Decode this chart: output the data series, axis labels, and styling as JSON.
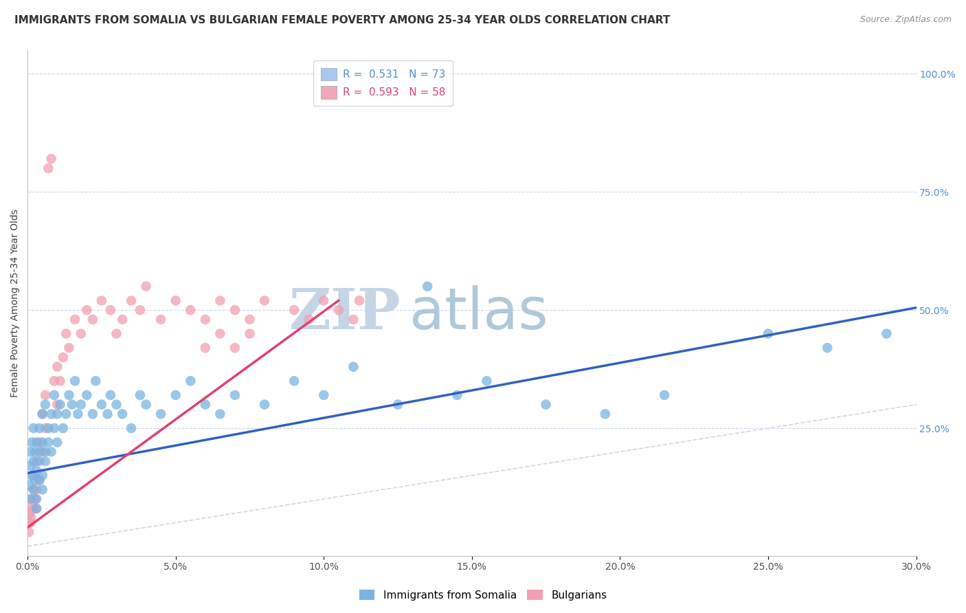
{
  "title": "IMMIGRANTS FROM SOMALIA VS BULGARIAN FEMALE POVERTY AMONG 25-34 YEAR OLDS CORRELATION CHART",
  "source": "Source: ZipAtlas.com",
  "ylabel": "Female Poverty Among 25-34 Year Olds",
  "xlim": [
    0.0,
    0.3
  ],
  "ylim": [
    -0.02,
    1.05
  ],
  "xtick_labels": [
    "0.0%",
    "5.0%",
    "10.0%",
    "15.0%",
    "20.0%",
    "25.0%",
    "30.0%"
  ],
  "xtick_vals": [
    0.0,
    0.05,
    0.1,
    0.15,
    0.2,
    0.25,
    0.3
  ],
  "ytick_labels_right": [
    "100.0%",
    "75.0%",
    "50.0%",
    "25.0%"
  ],
  "ytick_vals_right": [
    1.0,
    0.75,
    0.5,
    0.25
  ],
  "legend_entries": [
    {
      "label": "R =  0.531   N = 73",
      "color": "#a8c8f0"
    },
    {
      "label": "R =  0.593   N = 58",
      "color": "#f0a8b8"
    }
  ],
  "color_somalia": "#7ab3e0",
  "color_bulgarian": "#f0a0b0",
  "trendline_somalia_color": "#3060c0",
  "trendline_bulgarian_color": "#e04070",
  "watermark_zip": "ZIP",
  "watermark_atlas": "atlas",
  "watermark_color_zip": "#c5d5e5",
  "watermark_color_atlas": "#b0c8d8",
  "background_color": "#ffffff",
  "grid_color": "#d0d8e8",
  "somalia_x": [
    0.0005,
    0.001,
    0.001,
    0.001,
    0.0015,
    0.0015,
    0.002,
    0.002,
    0.002,
    0.0025,
    0.0025,
    0.003,
    0.003,
    0.003,
    0.003,
    0.004,
    0.004,
    0.004,
    0.004,
    0.005,
    0.005,
    0.005,
    0.005,
    0.006,
    0.006,
    0.006,
    0.007,
    0.007,
    0.008,
    0.008,
    0.009,
    0.009,
    0.01,
    0.01,
    0.011,
    0.012,
    0.013,
    0.014,
    0.015,
    0.016,
    0.017,
    0.018,
    0.02,
    0.022,
    0.023,
    0.025,
    0.027,
    0.028,
    0.03,
    0.032,
    0.035,
    0.038,
    0.04,
    0.045,
    0.05,
    0.055,
    0.06,
    0.065,
    0.07,
    0.08,
    0.09,
    0.1,
    0.11,
    0.125,
    0.135,
    0.145,
    0.155,
    0.175,
    0.195,
    0.215,
    0.25,
    0.27,
    0.29
  ],
  "somalia_y": [
    0.13,
    0.17,
    0.1,
    0.2,
    0.15,
    0.22,
    0.12,
    0.18,
    0.25,
    0.14,
    0.2,
    0.1,
    0.16,
    0.22,
    0.08,
    0.18,
    0.14,
    0.25,
    0.2,
    0.15,
    0.22,
    0.28,
    0.12,
    0.2,
    0.3,
    0.18,
    0.25,
    0.22,
    0.28,
    0.2,
    0.25,
    0.32,
    0.28,
    0.22,
    0.3,
    0.25,
    0.28,
    0.32,
    0.3,
    0.35,
    0.28,
    0.3,
    0.32,
    0.28,
    0.35,
    0.3,
    0.28,
    0.32,
    0.3,
    0.28,
    0.25,
    0.32,
    0.3,
    0.28,
    0.32,
    0.35,
    0.3,
    0.28,
    0.32,
    0.3,
    0.35,
    0.32,
    0.38,
    0.3,
    0.55,
    0.32,
    0.35,
    0.3,
    0.28,
    0.32,
    0.45,
    0.42,
    0.45
  ],
  "bulgarian_x": [
    0.0003,
    0.0005,
    0.0008,
    0.001,
    0.001,
    0.0012,
    0.0015,
    0.002,
    0.002,
    0.002,
    0.0025,
    0.003,
    0.003,
    0.003,
    0.004,
    0.004,
    0.005,
    0.005,
    0.006,
    0.006,
    0.007,
    0.008,
    0.009,
    0.01,
    0.01,
    0.011,
    0.012,
    0.013,
    0.014,
    0.016,
    0.018,
    0.02,
    0.022,
    0.025,
    0.028,
    0.03,
    0.032,
    0.035,
    0.038,
    0.04,
    0.045,
    0.05,
    0.055,
    0.06,
    0.065,
    0.07,
    0.075,
    0.08,
    0.09,
    0.095,
    0.1,
    0.105,
    0.11,
    0.112,
    0.06,
    0.065,
    0.07,
    0.075
  ],
  "bulgarian_y": [
    0.05,
    0.03,
    0.07,
    0.05,
    0.08,
    0.06,
    0.1,
    0.08,
    0.12,
    0.15,
    0.1,
    0.08,
    0.12,
    0.18,
    0.14,
    0.22,
    0.2,
    0.28,
    0.25,
    0.32,
    0.8,
    0.82,
    0.35,
    0.3,
    0.38,
    0.35,
    0.4,
    0.45,
    0.42,
    0.48,
    0.45,
    0.5,
    0.48,
    0.52,
    0.5,
    0.45,
    0.48,
    0.52,
    0.5,
    0.55,
    0.48,
    0.52,
    0.5,
    0.48,
    0.52,
    0.5,
    0.48,
    0.52,
    0.5,
    0.48,
    0.52,
    0.5,
    0.48,
    0.52,
    0.42,
    0.45,
    0.42,
    0.45
  ],
  "somalia_trendline_x": [
    0.0,
    0.3
  ],
  "somalia_trendline_y": [
    0.155,
    0.505
  ],
  "bulgarian_trendline_x": [
    0.0,
    0.105
  ],
  "bulgarian_trendline_y": [
    0.04,
    0.52
  ],
  "title_fontsize": 11,
  "axis_label_fontsize": 10,
  "tick_fontsize": 10,
  "legend_fontsize": 11
}
